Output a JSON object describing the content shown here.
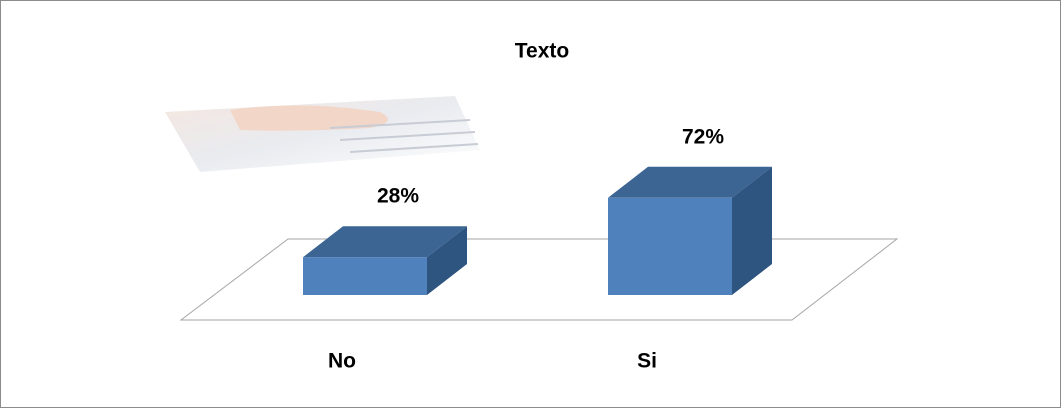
{
  "chart_data": {
    "type": "bar3d",
    "title": "Texto",
    "categories": [
      "No",
      "Si"
    ],
    "values": [
      28,
      72
    ],
    "value_labels": [
      "28%",
      "72%"
    ],
    "color": "#4f81bd"
  }
}
